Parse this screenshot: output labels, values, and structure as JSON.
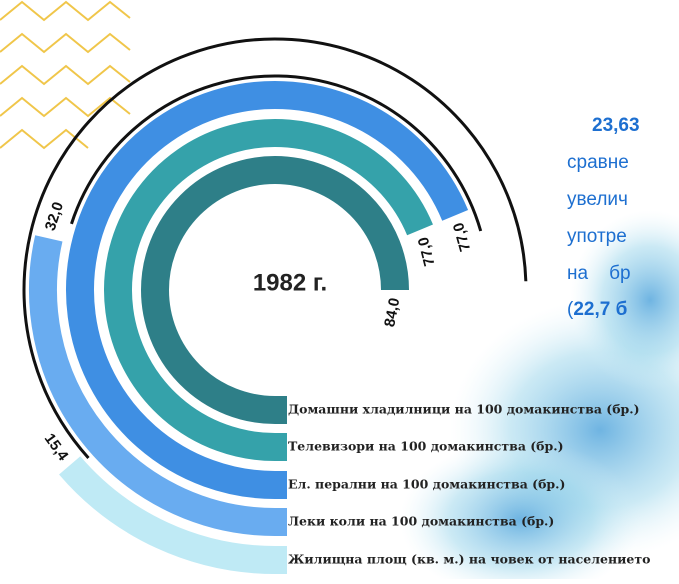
{
  "chart_data": {
    "type": "radial-bar",
    "title": "1982 г.",
    "categories": [
      "Домашни хладилници на 100 домакинства (бр.)",
      "Телевизори на 100 домакинства (бр.)",
      "Ел. перални на 100 домакинства (бр.)",
      "Леки коли на 100 домакинства (бр.)",
      "Жилищна площ (кв. м.) на човек от населението"
    ],
    "values": [
      84.0,
      77.0,
      77.0,
      32.0,
      15.4
    ],
    "value_labels": [
      "84,0",
      "77,0",
      "77,0",
      "32,0",
      "15,4"
    ],
    "colors": [
      "#2e7f88",
      "#35a2aa",
      "#3f8fe3",
      "#69acf0",
      "#bfeaf5"
    ],
    "ylim": [
      0,
      84
    ]
  },
  "side_text": {
    "lead": "23,63",
    "lines": [
      "сравне",
      "увелич",
      "употре",
      "на    бр"
    ],
    "last_open": "(",
    "last_bold": "22,7 б"
  }
}
